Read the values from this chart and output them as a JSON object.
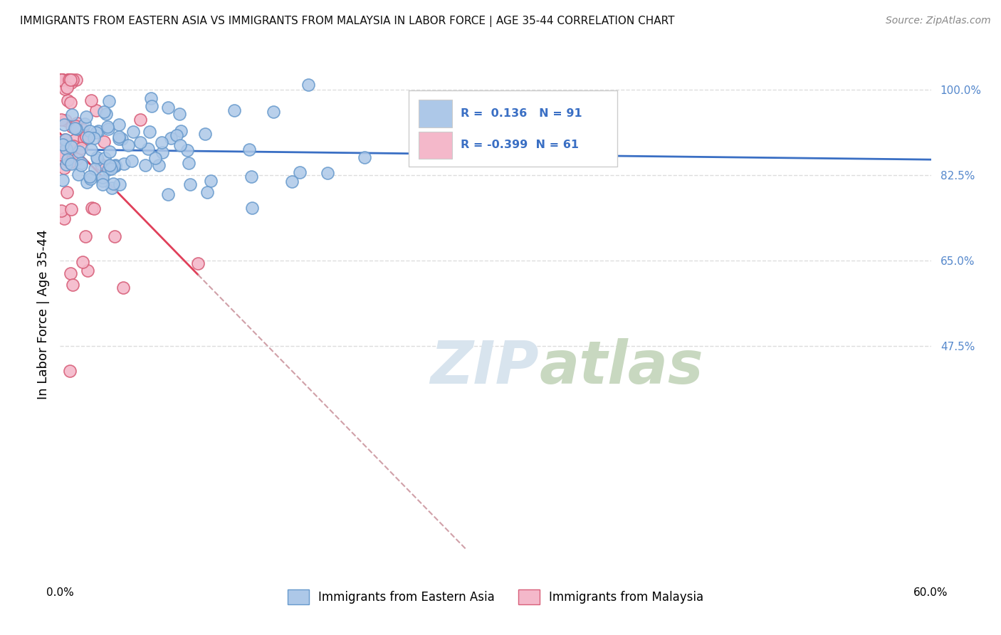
{
  "title": "IMMIGRANTS FROM EASTERN ASIA VS IMMIGRANTS FROM MALAYSIA IN LABOR FORCE | AGE 35-44 CORRELATION CHART",
  "source": "Source: ZipAtlas.com",
  "ylabel": "In Labor Force | Age 35-44",
  "ylabel_ticks": [
    0.0,
    0.475,
    0.65,
    0.825,
    1.0
  ],
  "ylabel_labels": [
    "",
    "47.5%",
    "65.0%",
    "82.5%",
    "100.0%"
  ],
  "xlim": [
    0.0,
    0.6
  ],
  "ylim": [
    0.0,
    1.08
  ],
  "blue_R": 0.136,
  "blue_N": 91,
  "pink_R": -0.399,
  "pink_N": 61,
  "blue_color": "#adc8e8",
  "blue_edge": "#6699cc",
  "pink_color": "#f4b8ca",
  "pink_edge": "#d8607a",
  "blue_line_color": "#3a6fc4",
  "pink_line_color": "#e0405a",
  "pink_line_dash_color": "#d0a0a8",
  "legend_blue_fill": "#adc8e8",
  "legend_pink_fill": "#f4b8ca",
  "watermark_color": "#d8e4ee",
  "background_color": "#ffffff",
  "grid_color": "#dddddd",
  "legend_text_color": "#3a6fc4",
  "right_tick_color": "#5588cc"
}
